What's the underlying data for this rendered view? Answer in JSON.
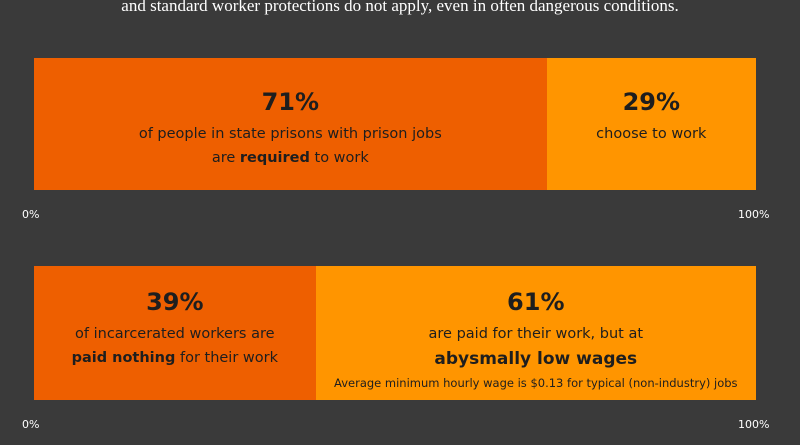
{
  "subtitle": "and standard worker protections do not apply, even in often dangerous conditions.",
  "chart_data": [
    {
      "type": "bar",
      "orientation": "horizontal-stacked",
      "xlim": [
        0,
        100
      ],
      "tick_labels": [
        "0%",
        "100%"
      ],
      "segments": [
        {
          "value": 71,
          "label": "71%",
          "line1": "of people in state prisons with prison jobs",
          "line2_pre": "are ",
          "line2_bold": "required",
          "line2_post": " to work",
          "color": "#ee5f00"
        },
        {
          "value": 29,
          "label": "29%",
          "line1": "choose to work",
          "color": "#ff9500"
        }
      ]
    },
    {
      "type": "bar",
      "orientation": "horizontal-stacked",
      "xlim": [
        0,
        100
      ],
      "tick_labels": [
        "0%",
        "100%"
      ],
      "segments": [
        {
          "value": 39,
          "label": "39%",
          "line1": "of incarcerated workers are",
          "line2_bold": "paid nothing",
          "line2_post": " for their work",
          "color": "#ee5f00"
        },
        {
          "value": 61,
          "label": "61%",
          "line1": "are paid for their work, but at",
          "line2_bold": "abysmally low wages",
          "note": "Average minimum hourly wage is $0.13 for typical (non-industry) jobs",
          "color": "#ff9500"
        }
      ]
    }
  ]
}
